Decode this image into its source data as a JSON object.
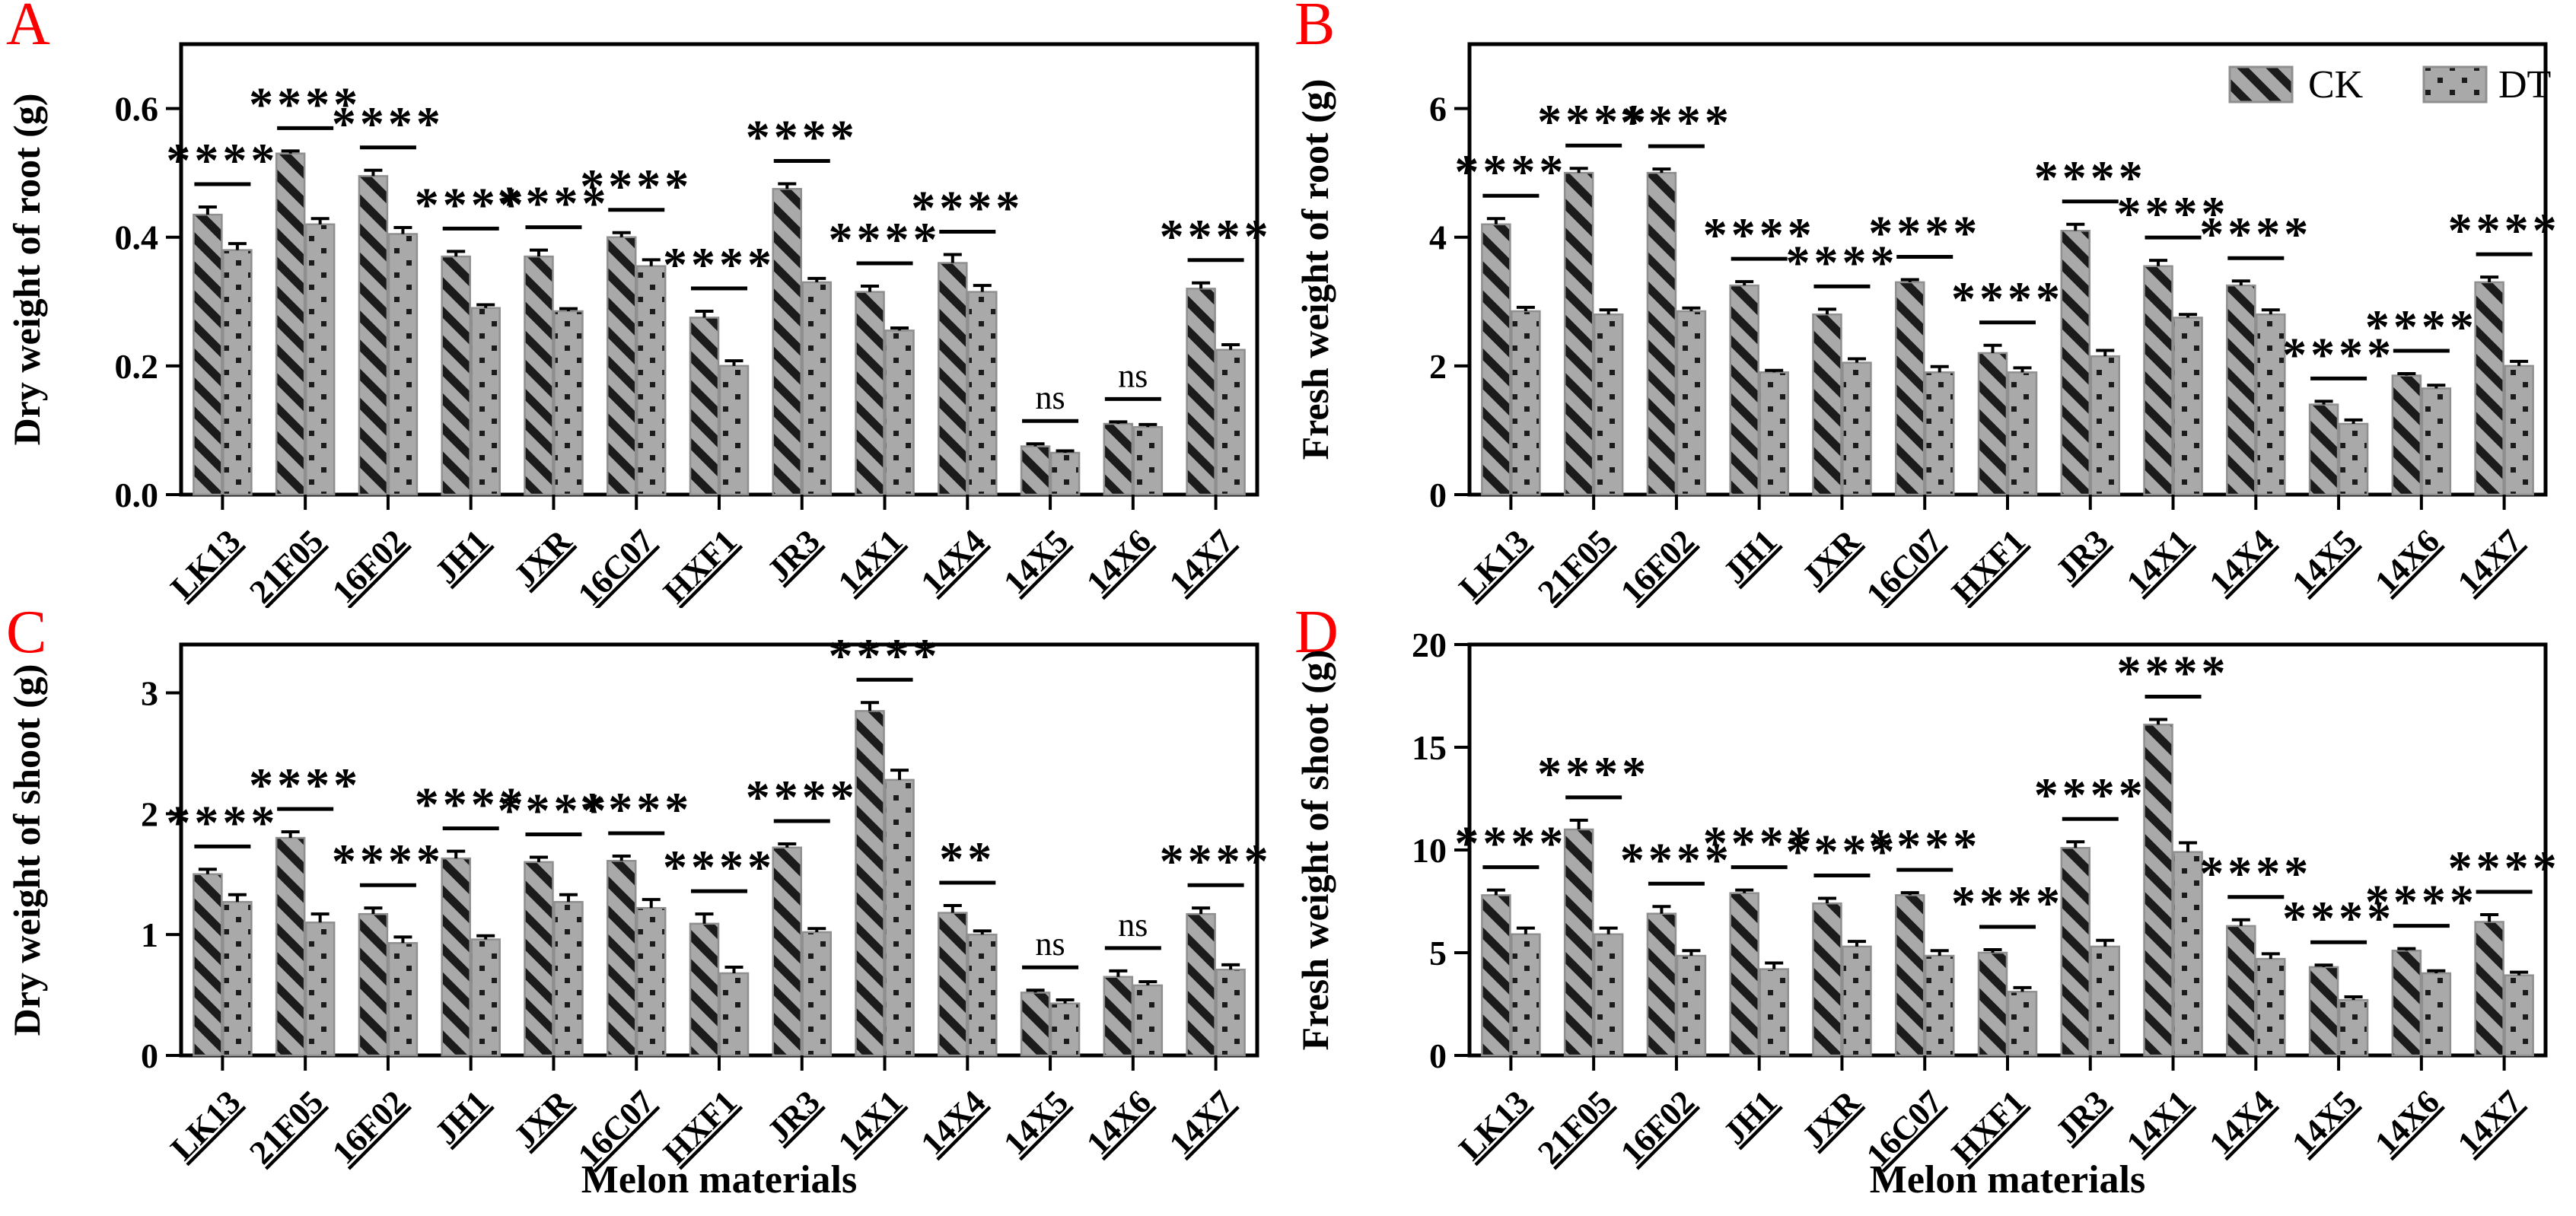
{
  "figure": {
    "x_axis_title": "Melon materials",
    "legend": {
      "entries": [
        "CK",
        "DT"
      ],
      "shown_in_panel": "B",
      "position": "top-right-inside"
    },
    "colors": {
      "panel_letter": "#fb0000",
      "bar_fill": "#a9a9a9",
      "pattern_dark": "#1b1b1b",
      "bar_edge": "#8f8f8f",
      "axis": "#000000",
      "background": "#ffffff"
    },
    "patterns": {
      "CK": "diagonal-hatch",
      "DT": "square-dots"
    }
  },
  "chart_data": [
    {
      "panel": "A",
      "type": "bar",
      "ylabel": "Dry weight of root (g)",
      "xlabel": "",
      "categories": [
        "LK13",
        "21F05",
        "16F02",
        "JH1",
        "JXR",
        "16C07",
        "HXF1",
        "JR3",
        "14X1",
        "14X4",
        "14X5",
        "14X6",
        "14X7"
      ],
      "yticks": [
        0.0,
        0.2,
        0.4,
        0.6
      ],
      "ytick_labels": [
        "0.0",
        "0.2",
        "0.4",
        "0.6"
      ],
      "ylim": [
        0,
        0.7
      ],
      "grid": false,
      "series": [
        {
          "name": "CK",
          "values": [
            0.435,
            0.53,
            0.495,
            0.37,
            0.37,
            0.4,
            0.275,
            0.475,
            0.315,
            0.36,
            0.075,
            0.11,
            0.32
          ],
          "errors": [
            0.012,
            0.004,
            0.009,
            0.008,
            0.01,
            0.007,
            0.01,
            0.008,
            0.009,
            0.013,
            0.004,
            0.003,
            0.009
          ]
        },
        {
          "name": "DT",
          "values": [
            0.38,
            0.42,
            0.405,
            0.29,
            0.285,
            0.355,
            0.2,
            0.33,
            0.255,
            0.315,
            0.065,
            0.105,
            0.225
          ],
          "errors": [
            0.01,
            0.009,
            0.01,
            0.005,
            0.004,
            0.01,
            0.008,
            0.006,
            0.004,
            0.01,
            0.003,
            0.004,
            0.008
          ]
        }
      ],
      "significance": [
        "****",
        "****",
        "****",
        "****",
        "****",
        "****",
        "****",
        "****",
        "****",
        "****",
        "ns",
        "ns",
        "****"
      ],
      "show_legend": false,
      "show_x_title": false
    },
    {
      "panel": "B",
      "type": "bar",
      "ylabel": "Fresh weight of root (g)",
      "xlabel": "",
      "categories": [
        "LK13",
        "21F05",
        "16F02",
        "JH1",
        "JXR",
        "16C07",
        "HXF1",
        "JR3",
        "14X1",
        "14X4",
        "14X5",
        "14X6",
        "14X7"
      ],
      "yticks": [
        0,
        2,
        4,
        6
      ],
      "ytick_labels": [
        "0",
        "2",
        "4",
        "6"
      ],
      "ylim": [
        0,
        7
      ],
      "grid": false,
      "series": [
        {
          "name": "CK",
          "values": [
            4.2,
            5.0,
            5.0,
            3.25,
            2.8,
            3.3,
            2.2,
            4.1,
            3.55,
            3.25,
            1.4,
            1.85,
            3.3
          ],
          "errors": [
            0.09,
            0.07,
            0.06,
            0.06,
            0.08,
            0.04,
            0.12,
            0.1,
            0.09,
            0.07,
            0.05,
            0.03,
            0.08
          ]
        },
        {
          "name": "DT",
          "values": [
            2.85,
            2.8,
            2.85,
            1.9,
            2.05,
            1.9,
            1.9,
            2.15,
            2.75,
            2.8,
            1.1,
            1.65,
            2.0
          ],
          "errors": [
            0.06,
            0.07,
            0.05,
            0.03,
            0.06,
            0.09,
            0.07,
            0.09,
            0.05,
            0.07,
            0.06,
            0.05,
            0.07
          ]
        }
      ],
      "significance": [
        "****",
        "****",
        "****",
        "****",
        "****",
        "****",
        "****",
        "****",
        "****",
        "****",
        "****",
        "****",
        "****"
      ],
      "show_legend": true,
      "show_x_title": false
    },
    {
      "panel": "C",
      "type": "bar",
      "ylabel": "Dry weight of shoot (g)",
      "xlabel": "Melon materials",
      "categories": [
        "LK13",
        "21F05",
        "16F02",
        "JH1",
        "JXR",
        "16C07",
        "HXF1",
        "JR3",
        "14X1",
        "14X4",
        "14X5",
        "14X6",
        "14X7"
      ],
      "yticks": [
        0,
        1,
        2,
        3
      ],
      "ytick_labels": [
        "0",
        "1",
        "2",
        "3"
      ],
      "ylim": [
        0,
        3.4
      ],
      "grid": false,
      "series": [
        {
          "name": "CK",
          "values": [
            1.5,
            1.8,
            1.17,
            1.63,
            1.6,
            1.61,
            1.09,
            1.72,
            2.85,
            1.18,
            0.52,
            0.65,
            1.17
          ],
          "errors": [
            0.04,
            0.05,
            0.05,
            0.06,
            0.04,
            0.04,
            0.08,
            0.03,
            0.07,
            0.06,
            0.02,
            0.05,
            0.05
          ]
        },
        {
          "name": "DT",
          "values": [
            1.27,
            1.1,
            0.93,
            0.96,
            1.27,
            1.22,
            0.68,
            1.02,
            2.28,
            1.0,
            0.43,
            0.58,
            0.71
          ],
          "errors": [
            0.06,
            0.07,
            0.05,
            0.03,
            0.06,
            0.07,
            0.05,
            0.03,
            0.08,
            0.03,
            0.03,
            0.03,
            0.04
          ]
        }
      ],
      "significance": [
        "****",
        "****",
        "****",
        "****",
        "****",
        "****",
        "****",
        "****",
        "****",
        "**",
        "ns",
        "ns",
        "****"
      ],
      "show_legend": false,
      "show_x_title": true
    },
    {
      "panel": "D",
      "type": "bar",
      "ylabel": "Fresh weight of shoot (g)",
      "xlabel": "Melon materials",
      "categories": [
        "LK13",
        "21F05",
        "16F02",
        "JH1",
        "JXR",
        "16C07",
        "HXF1",
        "JR3",
        "14X1",
        "14X4",
        "14X5",
        "14X6",
        "14X7"
      ],
      "yticks": [
        0,
        5,
        10,
        15,
        20
      ],
      "ytick_labels": [
        "0",
        "5",
        "10",
        "15",
        "20"
      ],
      "ylim": [
        0,
        20
      ],
      "grid": false,
      "series": [
        {
          "name": "CK",
          "values": [
            7.8,
            11.0,
            6.9,
            7.9,
            7.4,
            7.8,
            5.0,
            10.1,
            16.1,
            6.3,
            4.3,
            5.1,
            6.5
          ],
          "errors": [
            0.25,
            0.45,
            0.35,
            0.15,
            0.25,
            0.12,
            0.15,
            0.3,
            0.25,
            0.3,
            0.1,
            0.1,
            0.35
          ]
        },
        {
          "name": "DT",
          "values": [
            5.9,
            5.9,
            4.85,
            4.2,
            5.3,
            4.85,
            3.1,
            5.3,
            9.9,
            4.7,
            2.7,
            4.0,
            3.9
          ],
          "errors": [
            0.3,
            0.3,
            0.25,
            0.3,
            0.25,
            0.25,
            0.2,
            0.3,
            0.45,
            0.25,
            0.15,
            0.12,
            0.15
          ]
        }
      ],
      "significance": [
        "****",
        "****",
        "****",
        "****",
        "****",
        "****",
        "****",
        "****",
        "****",
        "****",
        "****",
        "****",
        "****"
      ],
      "show_legend": false,
      "show_x_title": true
    }
  ]
}
